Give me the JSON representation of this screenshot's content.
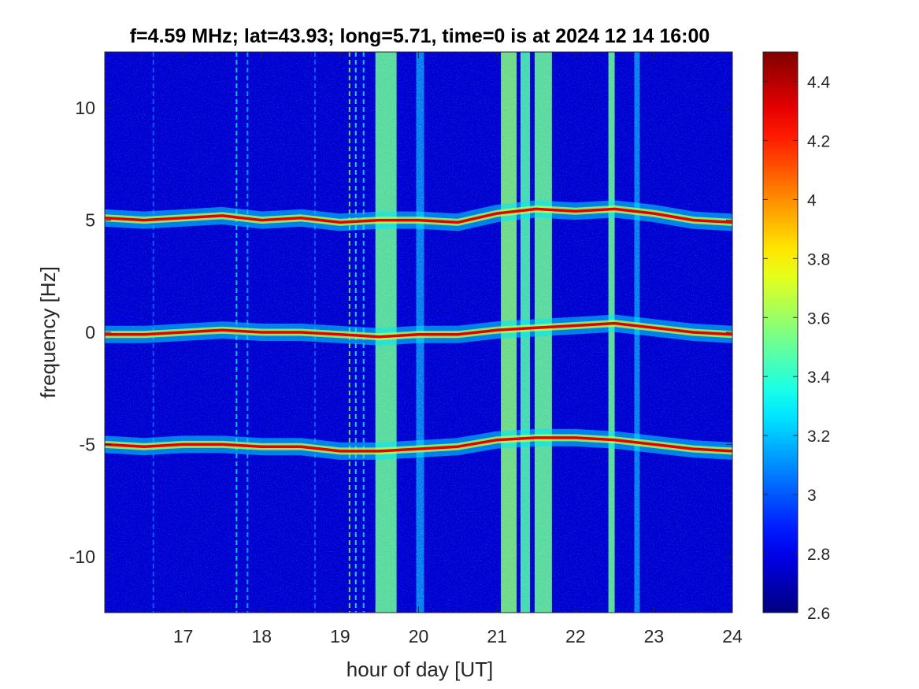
{
  "chart_data": {
    "type": "heatmap",
    "title": "f=4.59 MHz;  lat=43.93; long=5.71, time=0 is at 2024 12 14 16:00",
    "xlabel": "hour of day [UT]",
    "ylabel": "frequency [Hz]",
    "xlim": [
      16,
      24
    ],
    "ylim": [
      -12.5,
      12.5
    ],
    "x_ticks": [
      17,
      18,
      19,
      20,
      21,
      22,
      23,
      24
    ],
    "x_tick_labels": [
      "17",
      "18",
      "19",
      "20",
      "21",
      "22",
      "23",
      "24"
    ],
    "y_ticks": [
      -10,
      -5,
      0,
      5,
      10
    ],
    "y_tick_labels": [
      "-10",
      "-5",
      "0",
      "5",
      "10"
    ],
    "colormap": "jet",
    "clim": [
      2.6,
      4.5
    ],
    "colorbar_ticks": [
      2.6,
      2.8,
      3.0,
      3.2,
      3.4,
      3.6,
      3.8,
      4.0,
      4.2,
      4.4
    ],
    "colorbar_tick_labels": [
      "2.6",
      "2.8",
      "3",
      "3.2",
      "3.4",
      "3.6",
      "3.8",
      "4",
      "4.2",
      "4.4"
    ],
    "background_level": 2.75,
    "traces": [
      {
        "label": "+5 Hz Doppler trace",
        "x": [
          16.0,
          16.5,
          17.0,
          17.5,
          18.0,
          18.5,
          19.0,
          19.5,
          20.0,
          20.5,
          21.0,
          21.5,
          22.0,
          22.5,
          23.0,
          23.5,
          24.0
        ],
        "y": [
          5.1,
          5.0,
          5.1,
          5.2,
          5.0,
          5.1,
          4.9,
          5.0,
          5.0,
          4.9,
          5.3,
          5.5,
          5.4,
          5.5,
          5.3,
          5.0,
          4.9
        ]
      },
      {
        "label": "0 Hz Doppler trace",
        "x": [
          16.0,
          16.5,
          17.0,
          17.5,
          18.0,
          18.5,
          19.0,
          19.5,
          20.0,
          20.5,
          21.0,
          21.5,
          22.0,
          22.5,
          23.0,
          23.5,
          24.0
        ],
        "y": [
          -0.1,
          -0.1,
          0.0,
          0.1,
          0.0,
          0.0,
          -0.1,
          -0.2,
          -0.1,
          -0.1,
          0.1,
          0.2,
          0.3,
          0.4,
          0.2,
          0.0,
          -0.1
        ]
      },
      {
        "label": "-5 Hz Doppler trace",
        "x": [
          16.0,
          16.5,
          17.0,
          17.5,
          18.0,
          18.5,
          19.0,
          19.5,
          20.0,
          20.5,
          21.0,
          21.5,
          22.0,
          22.5,
          23.0,
          23.5,
          24.0
        ],
        "y": [
          -5.0,
          -5.1,
          -5.0,
          -5.0,
          -5.1,
          -5.1,
          -5.3,
          -5.3,
          -5.2,
          -5.1,
          -4.8,
          -4.7,
          -4.7,
          -4.8,
          -5.0,
          -5.2,
          -5.3
        ]
      }
    ],
    "broadband_bands": [
      {
        "label": "band 19.5 UT",
        "x_start": 19.45,
        "x_end": 19.72,
        "level": 3.5
      },
      {
        "label": "band 20.0 UT",
        "x_start": 19.97,
        "x_end": 20.07,
        "level": 3.1
      },
      {
        "label": "band 21.1 UT",
        "x_start": 21.05,
        "x_end": 21.25,
        "level": 3.55
      },
      {
        "label": "band 21.35 UT",
        "x_start": 21.3,
        "x_end": 21.42,
        "level": 3.45
      },
      {
        "label": "band 21.55 UT",
        "x_start": 21.48,
        "x_end": 21.7,
        "level": 3.5
      },
      {
        "label": "band 22.45 UT",
        "x_start": 22.42,
        "x_end": 22.5,
        "level": 3.5
      },
      {
        "label": "band 22.8 UT",
        "x_start": 22.75,
        "x_end": 22.82,
        "level": 3.1
      }
    ],
    "thin_lines": [
      {
        "x": 17.68,
        "level": 3.3
      },
      {
        "x": 17.82,
        "level": 3.2
      },
      {
        "x": 19.12,
        "level": 3.6
      },
      {
        "x": 19.2,
        "level": 3.4
      },
      {
        "x": 19.3,
        "level": 3.3
      },
      {
        "x": 16.62,
        "level": 3.05
      },
      {
        "x": 18.68,
        "level": 3.05
      }
    ]
  }
}
